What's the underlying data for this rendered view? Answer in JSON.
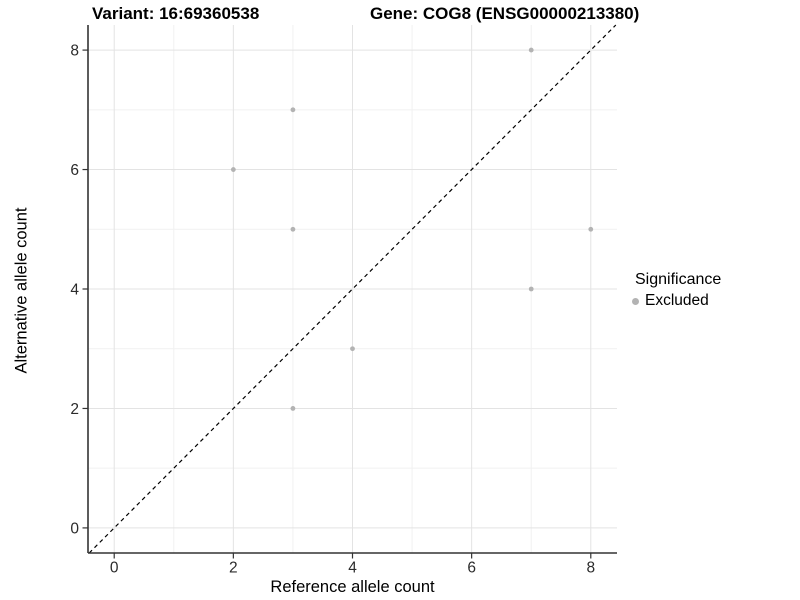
{
  "titles": {
    "variant": "Variant: 16:69360538",
    "gene": "Gene: COG8 (ENSG00000213380)"
  },
  "axes": {
    "x_label": "Reference allele count",
    "y_label": "Alternative allele count"
  },
  "legend": {
    "title": "Significance",
    "entries": [
      {
        "label": "Excluded",
        "color": "#b3b3b3"
      }
    ]
  },
  "chart_data": {
    "type": "scatter",
    "title": "Variant: 16:69360538   Gene: COG8 (ENSG00000213380)",
    "xlabel": "Reference allele count",
    "ylabel": "Alternative allele count",
    "xlim": [
      -0.44,
      8.44
    ],
    "ylim": [
      -0.42,
      8.42
    ],
    "x_ticks": [
      0,
      2,
      4,
      6,
      8
    ],
    "y_ticks": [
      0,
      2,
      4,
      6,
      8
    ],
    "minor_x_ticks": [
      1,
      3,
      5,
      7
    ],
    "minor_y_ticks": [
      1,
      3,
      5,
      7
    ],
    "grid": "major+minor",
    "legend_position": "right",
    "series": [
      {
        "name": "Excluded",
        "color": "#b3b3b3",
        "points": [
          [
            2,
            6
          ],
          [
            3,
            2
          ],
          [
            3,
            5
          ],
          [
            3,
            7
          ],
          [
            4,
            3
          ],
          [
            7,
            4
          ],
          [
            7,
            8
          ],
          [
            8,
            5
          ]
        ]
      }
    ],
    "reference_line": {
      "style": "dashed",
      "slope": 1,
      "intercept": 0,
      "color": "#000000"
    },
    "colors": {
      "grid_major": "#e3e3e3",
      "grid_minor": "#f1f1f1",
      "axis_line": "#333333",
      "tick_mark": "#333333",
      "tick_text": "#2b2b2b",
      "point": "#b3b3b3",
      "background": "#ffffff"
    }
  }
}
